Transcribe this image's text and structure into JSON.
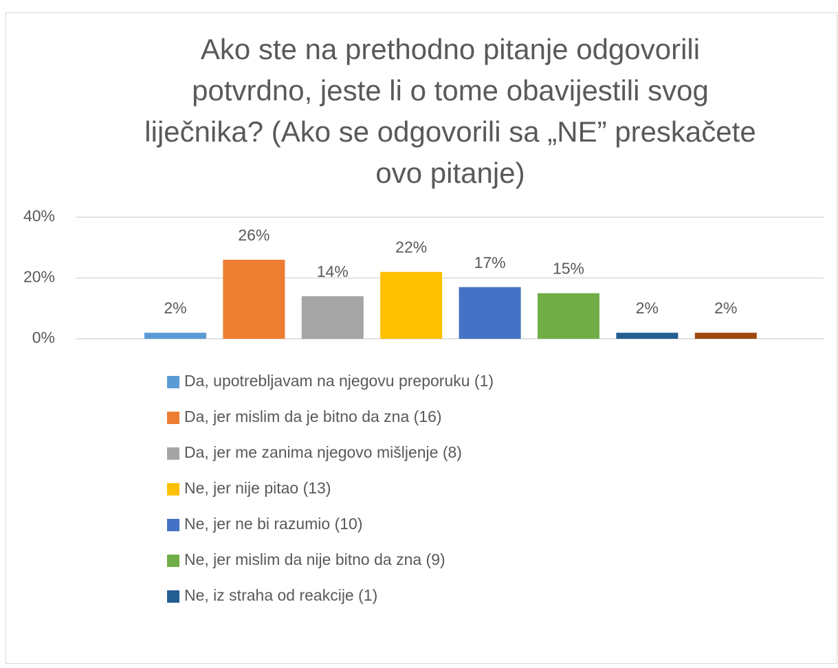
{
  "chart_data": {
    "type": "bar",
    "title": [
      "Ako ste na prethodno pitanje odgovorili",
      "potvrdno, jeste li o tome obavijestili svog",
      "liječnika? (Ako se odgovorili sa „NE” preskačete",
      "ovo pitanje)"
    ],
    "categories": [
      "Da, upotrebljavam na njegovu preporuku (1)",
      "Da, jer mislim da je bitno da zna (16)",
      "Da, jer me zanima njegovo mišljenje (8)",
      "Ne, jer nije pitao (13)",
      "Ne, jer ne bi razumio (10)",
      "Ne, jer mislim da nije bitno da zna (9)",
      "Ne, iz straha od reakcije (1)",
      null
    ],
    "values": [
      2,
      26,
      14,
      22,
      17,
      15,
      2,
      2
    ],
    "value_labels": [
      "2%",
      "26%",
      "14%",
      "22%",
      "17%",
      "15%",
      "2%",
      "2%"
    ],
    "colors": [
      "#5b9bd5",
      "#ed7d31",
      "#a5a5a5",
      "#ffc000",
      "#4472c4",
      "#70ad47",
      "#255e91",
      "#9e480e"
    ],
    "ylim": [
      0,
      40
    ],
    "yticks": [
      {
        "value": 0,
        "label": "0%"
      },
      {
        "value": 20,
        "label": "20%"
      },
      {
        "value": 40,
        "label": "40%"
      }
    ],
    "grid": true,
    "legend": "bottom"
  }
}
